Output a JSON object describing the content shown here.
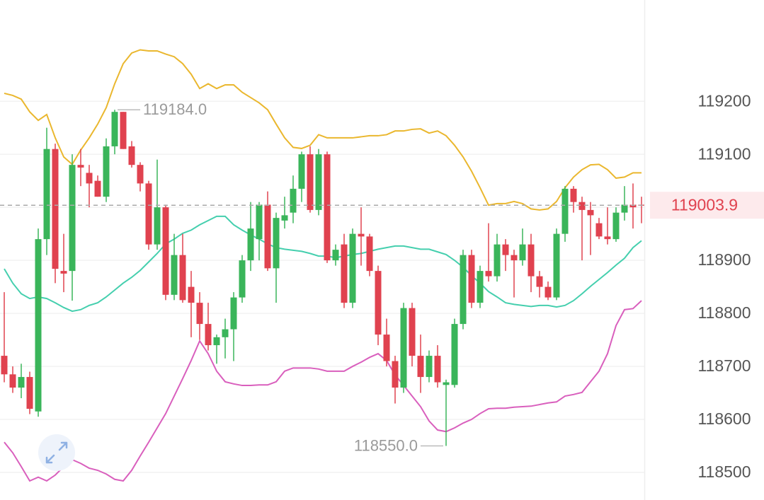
{
  "chart_data": {
    "type": "candlestick",
    "up_color": "#3ab55a",
    "down_color": "#e0424f",
    "ylim": [
      118448,
      119391
    ],
    "yticks": [
      118500,
      118600,
      118700,
      118800,
      118900,
      119000,
      119100,
      119200
    ],
    "grid": true,
    "open": [
      118720,
      118685,
      118660,
      118680,
      118615,
      118940,
      119110,
      118880,
      118880,
      119080,
      119065,
      119050,
      119020,
      119115,
      119180,
      119115,
      119080,
      119045,
      118930,
      119000,
      118835,
      118910,
      118850,
      118820,
      118780,
      118740,
      118755,
      118770,
      118830,
      118900,
      118940,
      119005,
      118885,
      118975,
      118990,
      119035,
      119100,
      118995,
      119100,
      118900,
      118930,
      118820,
      118950,
      118945,
      118880,
      118760,
      118710,
      118660,
      118810,
      118720,
      118680,
      118720,
      118665,
      118665,
      118780,
      118910,
      118820,
      118880,
      118870,
      118930,
      118910,
      118900,
      118930,
      118870,
      118850,
      118830,
      118950,
      119035,
      119010,
      118995,
      118970,
      118945,
      118940,
      118990,
      119005,
      119005
    ],
    "high": [
      118840,
      118700,
      118705,
      118690,
      118960,
      119150,
      119120,
      118950,
      119100,
      119110,
      119080,
      119060,
      119130,
      119184,
      119180,
      119125,
      119085,
      119050,
      119090,
      119005,
      118950,
      118950,
      118880,
      118840,
      118820,
      118760,
      118790,
      118840,
      118910,
      119010,
      119010,
      119030,
      118990,
      119020,
      119060,
      119105,
      119115,
      119110,
      119105,
      118930,
      118950,
      118960,
      119000,
      118950,
      118890,
      118790,
      118720,
      118820,
      118820,
      118760,
      118730,
      118740,
      118675,
      118790,
      118920,
      118920,
      118890,
      118970,
      118950,
      118940,
      118920,
      118960,
      118950,
      118880,
      118860,
      118960,
      119040,
      119040,
      119020,
      119010,
      118980,
      119000,
      119000,
      119040,
      119045,
      119020
    ],
    "low": [
      118670,
      118650,
      118640,
      118610,
      118605,
      118910,
      118857,
      118840,
      118824,
      119040,
      119000,
      119020,
      119010,
      119100,
      119110,
      119075,
      119030,
      118920,
      118920,
      118825,
      118825,
      118820,
      118755,
      118750,
      118730,
      118705,
      118715,
      118710,
      118820,
      118880,
      118900,
      118880,
      118820,
      118960,
      118970,
      119010,
      118990,
      118985,
      118895,
      118890,
      118810,
      118810,
      118890,
      118870,
      118740,
      118700,
      118630,
      118650,
      118700,
      118650,
      118670,
      118660,
      118550,
      118660,
      118770,
      118810,
      118810,
      118860,
      118860,
      118880,
      118830,
      118890,
      118840,
      118830,
      118825,
      118825,
      118935,
      118990,
      118900,
      118910,
      118940,
      118930,
      118935,
      118975,
      118960,
      118970
    ],
    "close": [
      118685,
      118660,
      118680,
      118620,
      118940,
      119110,
      118884,
      118875,
      119080,
      119075,
      119045,
      119020,
      119115,
      119180,
      119110,
      119080,
      119045,
      118930,
      119000,
      118835,
      118910,
      118825,
      118820,
      118780,
      118740,
      118755,
      118770,
      118830,
      118900,
      118960,
      119005,
      118885,
      118980,
      118985,
      119035,
      119100,
      118995,
      119100,
      118900,
      118920,
      118820,
      118950,
      118945,
      118880,
      118760,
      118710,
      118660,
      118810,
      118720,
      118680,
      118720,
      118670,
      118670,
      118780,
      118910,
      118820,
      118880,
      118870,
      118930,
      118910,
      118900,
      118930,
      118870,
      118850,
      118830,
      118950,
      119035,
      119010,
      118995,
      118985,
      118945,
      118940,
      118990,
      119005,
      119000,
      119003.9
    ],
    "bands": [
      {
        "color": "#eab72e",
        "values": [
          119215,
          119211,
          119204,
          119180,
          119164,
          119175,
          119131,
          119095,
          119081,
          119108,
          119131,
          119157,
          119188,
          119233,
          119271,
          119291,
          119297,
          119295,
          119295,
          119289,
          119284,
          119271,
          119251,
          119224,
          119233,
          119224,
          119231,
          119231,
          119217,
          119207,
          119197,
          119184,
          119157,
          119131,
          119113,
          119111,
          119117,
          119137,
          119131,
          119131,
          119131,
          119131,
          119133,
          119135,
          119135,
          119137,
          119144,
          119144,
          119147,
          119148,
          119140,
          119144,
          119135,
          119117,
          119095,
          119068,
          119037,
          119004,
          119007,
          119007,
          119011,
          119007,
          118997,
          118995,
          118997,
          119011,
          119037,
          119057,
          119071,
          119080,
          119081,
          119071,
          119055,
          119057,
          119065,
          119065
        ]
      },
      {
        "color": "#45cfae",
        "values": [
          118884,
          118857,
          118837,
          118828,
          118831,
          118828,
          118820,
          118811,
          118804,
          118807,
          118815,
          118820,
          118831,
          118844,
          118857,
          118868,
          118881,
          118897,
          118913,
          118931,
          118940,
          118951,
          118957,
          118967,
          118975,
          118983,
          118983,
          118967,
          118957,
          118948,
          118940,
          118931,
          118924,
          118921,
          118919,
          118917,
          118913,
          118908,
          118908,
          118905,
          118908,
          118911,
          118913,
          118917,
          118921,
          118924,
          118927,
          118927,
          118924,
          118921,
          118921,
          118916,
          118911,
          118900,
          118887,
          118871,
          118857,
          118841,
          118831,
          118820,
          118817,
          118815,
          118813,
          118815,
          118815,
          118812,
          118815,
          118824,
          118837,
          118851,
          118864,
          118877,
          118891,
          118904,
          118924,
          118937
        ]
      },
      {
        "color": "#d95fbd",
        "values": [
          118557,
          118537,
          118511,
          118484,
          118491,
          118484,
          118495,
          118511,
          118524,
          118517,
          118508,
          118504,
          118497,
          118487,
          118484,
          118504,
          118531,
          118557,
          118584,
          118611,
          118644,
          118677,
          118711,
          118748,
          118724,
          118691,
          118671,
          118667,
          118664,
          118664,
          118665,
          118665,
          118671,
          118691,
          118697,
          118697,
          118697,
          118695,
          118691,
          118691,
          118691,
          118700,
          118708,
          118717,
          118724,
          118711,
          118684,
          118664,
          118644,
          118624,
          118597,
          118580,
          118577,
          118584,
          118593,
          118600,
          118611,
          118620,
          118621,
          118621,
          118623,
          118624,
          118625,
          118628,
          118631,
          118633,
          118644,
          118647,
          118651,
          118671,
          118691,
          118724,
          118777,
          118807,
          118809,
          118824
        ]
      }
    ],
    "annotations": [
      {
        "value": 119184,
        "label": "119184.0"
      },
      {
        "value": 118550,
        "label": "118550.0"
      }
    ],
    "last_price": 119003.9
  }
}
